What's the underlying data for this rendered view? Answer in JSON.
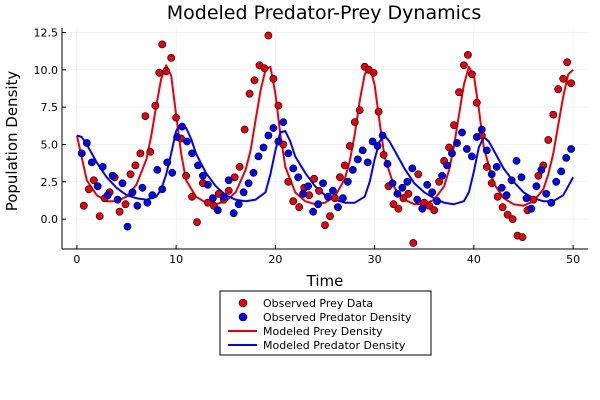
{
  "chart_data": {
    "type": "scatter",
    "title": "Modeled Predator-Prey Dynamics",
    "xlabel": "Time",
    "ylabel": "Population Density",
    "xlim": [
      -1.5,
      51.5
    ],
    "ylim": [
      -2.0,
      12.8
    ],
    "xticks": [
      0,
      10,
      20,
      30,
      40,
      50
    ],
    "xtick_labels": [
      "0",
      "10",
      "20",
      "30",
      "40",
      "50"
    ],
    "yticks": [
      0.0,
      2.5,
      5.0,
      7.5,
      10.0,
      12.5
    ],
    "ytick_labels": [
      "0.0",
      "2.5",
      "5.0",
      "7.5",
      "10.0",
      "12.5"
    ],
    "grid": true,
    "legend_position": "bottom-center-outside",
    "series": [
      {
        "name": "Observed Prey Data",
        "kind": "scatter",
        "color": "#e8000b",
        "x": [
          0.7,
          1.2,
          1.7,
          2.3,
          2.8,
          3.3,
          3.8,
          4.3,
          4.9,
          5.4,
          5.9,
          6.4,
          6.9,
          7.4,
          7.9,
          8.3,
          8.6,
          9.0,
          9.5,
          10.0,
          10.5,
          11.0,
          11.6,
          12.1,
          12.7,
          13.2,
          13.8,
          14.3,
          14.8,
          15.3,
          15.9,
          16.4,
          16.9,
          17.4,
          17.9,
          18.4,
          18.9,
          19.3,
          19.8,
          20.3,
          20.8,
          21.3,
          21.8,
          22.4,
          22.9,
          23.4,
          23.9,
          24.4,
          25.0,
          25.5,
          26.0,
          26.5,
          27.0,
          27.5,
          28.0,
          28.5,
          29.0,
          29.4,
          29.9,
          30.4,
          30.9,
          31.4,
          31.9,
          32.4,
          32.9,
          33.4,
          33.9,
          34.4,
          35.0,
          35.5,
          36.0,
          36.5,
          37.0,
          37.5,
          38.0,
          38.5,
          39.0,
          39.4,
          39.8,
          40.3,
          40.8,
          41.3,
          41.8,
          42.4,
          42.9,
          43.4,
          43.9,
          44.4,
          44.9,
          45.4,
          46.0,
          46.5,
          47.0,
          47.5,
          48.0,
          48.5,
          49.0,
          49.4,
          49.8
        ],
        "y": [
          0.9,
          2.0,
          2.6,
          0.2,
          1.4,
          1.8,
          2.8,
          0.5,
          1.0,
          3.0,
          3.6,
          4.4,
          6.9,
          4.5,
          7.6,
          9.8,
          11.7,
          9.9,
          10.8,
          6.8,
          5.4,
          2.9,
          1.5,
          -0.2,
          2.4,
          1.1,
          0.9,
          1.7,
          1.3,
          1.9,
          2.8,
          3.5,
          6.0,
          8.4,
          9.3,
          10.3,
          10.1,
          12.3,
          9.4,
          7.6,
          5.0,
          2.5,
          1.2,
          0.8,
          2.1,
          1.6,
          2.7,
          1.9,
          -0.4,
          0.2,
          1.4,
          2.8,
          3.6,
          4.9,
          6.5,
          7.3,
          10.2,
          10.0,
          9.8,
          7.2,
          4.3,
          2.2,
          1.0,
          0.7,
          1.4,
          1.7,
          -1.6,
          3.0,
          1.1,
          0.9,
          0.6,
          2.5,
          3.9,
          4.8,
          6.3,
          8.5,
          10.3,
          11.0,
          9.7,
          7.8,
          5.6,
          3.5,
          2.4,
          1.5,
          0.8,
          0.3,
          0.0,
          -1.1,
          -1.2,
          0.6,
          1.3,
          2.9,
          3.6,
          5.3,
          7.0,
          8.7,
          9.4,
          10.5,
          9.1
        ]
      },
      {
        "name": "Observed Predator Density",
        "kind": "scatter",
        "color": "#0000ff",
        "x": [
          0.5,
          1.0,
          1.5,
          2.1,
          2.6,
          3.1,
          3.6,
          4.1,
          4.6,
          5.1,
          5.6,
          6.1,
          6.6,
          7.1,
          7.6,
          8.1,
          8.6,
          9.1,
          9.6,
          10.1,
          10.6,
          11.1,
          11.6,
          12.2,
          12.7,
          13.2,
          13.7,
          14.2,
          14.8,
          15.3,
          15.8,
          16.3,
          16.8,
          17.3,
          17.8,
          18.3,
          18.8,
          19.3,
          19.8,
          20.3,
          20.8,
          21.3,
          21.8,
          22.3,
          22.8,
          23.3,
          23.8,
          24.3,
          24.8,
          25.3,
          25.8,
          26.3,
          26.8,
          27.3,
          27.8,
          28.3,
          28.8,
          29.3,
          29.8,
          30.3,
          30.8,
          31.3,
          31.8,
          32.3,
          32.8,
          33.3,
          33.8,
          34.3,
          34.8,
          35.3,
          35.8,
          36.3,
          36.8,
          37.3,
          37.8,
          38.3,
          38.8,
          39.3,
          39.8,
          40.3,
          40.8,
          41.3,
          41.8,
          42.3,
          42.8,
          43.3,
          43.8,
          44.3,
          44.8,
          45.3,
          45.8,
          46.3,
          46.8,
          47.3,
          47.8,
          48.3,
          48.8,
          49.3,
          49.8
        ],
        "y": [
          4.4,
          5.1,
          3.8,
          2.2,
          3.5,
          1.6,
          2.9,
          1.3,
          2.4,
          -0.5,
          1.8,
          0.9,
          2.1,
          1.1,
          1.6,
          3.3,
          2.0,
          3.8,
          3.1,
          5.5,
          6.2,
          5.2,
          4.4,
          3.6,
          2.9,
          2.3,
          1.4,
          0.6,
          1.5,
          2.6,
          0.4,
          1.0,
          1.8,
          2.4,
          3.1,
          4.2,
          4.8,
          5.6,
          6.1,
          5.2,
          6.5,
          4.4,
          3.4,
          2.8,
          1.7,
          2.2,
          0.5,
          1.0,
          2.4,
          1.5,
          1.9,
          0.8,
          1.4,
          2.5,
          3.3,
          4.0,
          4.6,
          3.8,
          5.2,
          4.9,
          5.6,
          3.7,
          2.4,
          1.7,
          2.1,
          2.5,
          3.4,
          1.3,
          0.7,
          2.3,
          1.8,
          1.2,
          2.9,
          3.6,
          4.4,
          5.1,
          5.8,
          4.7,
          4.2,
          5.5,
          6.0,
          4.6,
          3.0,
          3.5,
          2.1,
          1.6,
          2.6,
          3.9,
          2.8,
          1.4,
          0.7,
          2.2,
          3.3,
          1.7,
          1.1,
          2.5,
          3.2,
          4.1,
          4.7
        ]
      },
      {
        "name": "Modeled Prey Density",
        "kind": "line",
        "color": "#e8000b",
        "x": [
          0,
          1,
          2,
          3,
          4,
          5,
          6,
          7,
          7.5,
          8,
          8.5,
          9,
          9.5,
          10,
          10.5,
          11,
          12,
          13,
          14,
          15,
          16,
          17,
          17.5,
          18,
          18.5,
          19,
          19.5,
          20,
          20.5,
          21,
          22,
          23,
          24,
          25,
          26,
          27,
          27.5,
          28,
          28.5,
          29,
          29.5,
          30,
          30.5,
          31,
          32,
          33,
          34,
          35,
          36,
          37,
          37.5,
          38,
          38.5,
          39,
          39.5,
          40,
          40.5,
          41,
          42,
          43,
          44,
          45,
          46,
          47,
          47.5,
          48,
          48.5,
          49,
          49.5,
          50
        ],
        "y": [
          5.6,
          2.6,
          1.6,
          1.2,
          1.2,
          1.5,
          2.3,
          4.0,
          5.6,
          7.6,
          9.4,
          10.3,
          9.6,
          7.0,
          4.4,
          2.6,
          1.5,
          1.1,
          1.0,
          1.2,
          1.8,
          3.3,
          4.6,
          6.6,
          8.6,
          10.0,
          10.2,
          8.4,
          5.7,
          3.5,
          1.8,
          1.2,
          1.0,
          1.1,
          1.5,
          2.7,
          3.9,
          5.7,
          7.9,
          9.7,
          10.2,
          9.0,
          6.5,
          4.2,
          2.1,
          1.3,
          1.0,
          1.0,
          1.3,
          2.2,
          3.3,
          4.9,
          7.0,
          9.0,
          10.2,
          9.6,
          7.4,
          4.8,
          2.4,
          1.4,
          1.0,
          0.9,
          1.2,
          2.0,
          3.0,
          4.4,
          6.3,
          8.2,
          9.7,
          10.0
        ]
      },
      {
        "name": "Modeled Predator Density",
        "kind": "line",
        "color": "#0000ff",
        "x": [
          0,
          0.5,
          1,
          2,
          3,
          4,
          5,
          6,
          7,
          8,
          8.5,
          9,
          9.5,
          10,
          10.5,
          11,
          11.5,
          12,
          13,
          14,
          15,
          16,
          17,
          18,
          19,
          19.5,
          20,
          20.5,
          21,
          21.5,
          22,
          23,
          24,
          25,
          26,
          27,
          28,
          29,
          29.5,
          30,
          30.5,
          31,
          31.5,
          32,
          33,
          34,
          35,
          36,
          37,
          38,
          39,
          39.5,
          40,
          40.5,
          41,
          41.5,
          42,
          43,
          44,
          45,
          46,
          47,
          48,
          49,
          49.5,
          50
        ],
        "y": [
          5.6,
          5.5,
          5.0,
          3.8,
          2.8,
          2.1,
          1.6,
          1.4,
          1.3,
          1.5,
          2.0,
          3.0,
          4.4,
          5.9,
          6.4,
          6.1,
          5.4,
          4.4,
          3.1,
          2.2,
          1.6,
          1.3,
          1.2,
          1.3,
          1.8,
          3.0,
          4.6,
          5.8,
          5.9,
          5.2,
          4.2,
          3.1,
          2.2,
          1.6,
          1.3,
          1.1,
          1.1,
          1.5,
          2.5,
          4.0,
          5.2,
          5.6,
          5.2,
          4.6,
          3.4,
          2.4,
          1.8,
          1.4,
          1.1,
          1.0,
          1.2,
          1.8,
          3.2,
          4.8,
          5.5,
          5.2,
          4.6,
          3.4,
          2.5,
          1.8,
          1.4,
          1.2,
          1.2,
          1.6,
          2.2,
          2.8
        ]
      }
    ]
  }
}
